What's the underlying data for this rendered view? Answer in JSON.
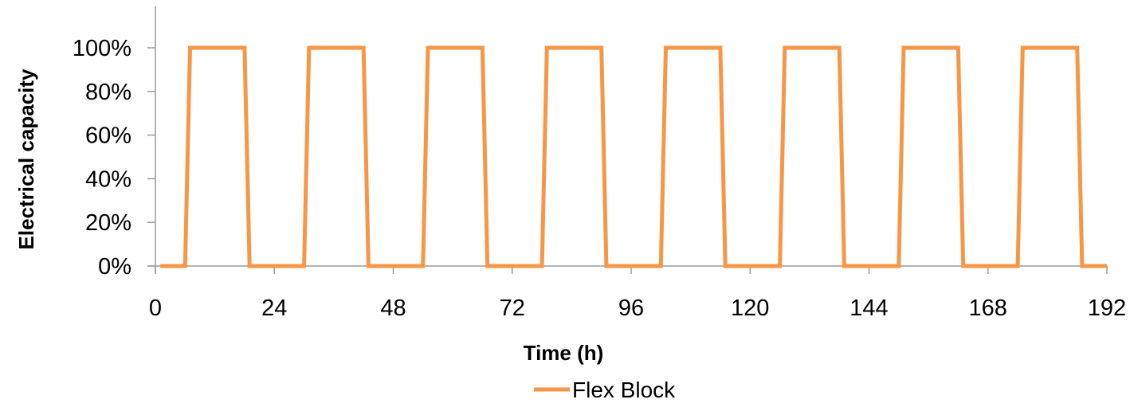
{
  "chart_data": {
    "type": "line",
    "title": "",
    "xlabel": "Time (h)",
    "ylabel": "Electrical  capacity",
    "xlim": [
      0,
      192
    ],
    "ylim": [
      0,
      100
    ],
    "x_ticks": [
      0,
      24,
      48,
      72,
      96,
      120,
      144,
      168,
      192
    ],
    "x_tick_labels": [
      "0",
      "24",
      "48",
      "72",
      "96",
      "120",
      "144",
      "168",
      "192"
    ],
    "y_ticks": [
      0,
      20,
      40,
      60,
      80,
      100
    ],
    "y_tick_labels": [
      "0%",
      "20%",
      "40%",
      "60%",
      "80%",
      "100%"
    ],
    "grid": false,
    "legend": {
      "position": "bottom",
      "entries": [
        "Flex Block"
      ]
    },
    "colors": {
      "series": "#F79646",
      "axis": "#9a9a9a"
    },
    "series": [
      {
        "name": "Flex Block",
        "x": [
          1,
          6,
          7,
          18,
          19,
          30,
          31,
          42,
          43,
          54,
          55,
          66,
          67,
          78,
          79,
          90,
          91,
          102,
          103,
          114,
          115,
          126,
          127,
          138,
          139,
          150,
          151,
          162,
          163,
          174,
          175,
          186,
          187,
          192
        ],
        "values": [
          0,
          0,
          100,
          100,
          0,
          0,
          100,
          100,
          0,
          0,
          100,
          100,
          0,
          0,
          100,
          100,
          0,
          0,
          100,
          100,
          0,
          0,
          100,
          100,
          0,
          0,
          100,
          100,
          0,
          0,
          100,
          100,
          0,
          0
        ]
      }
    ]
  }
}
